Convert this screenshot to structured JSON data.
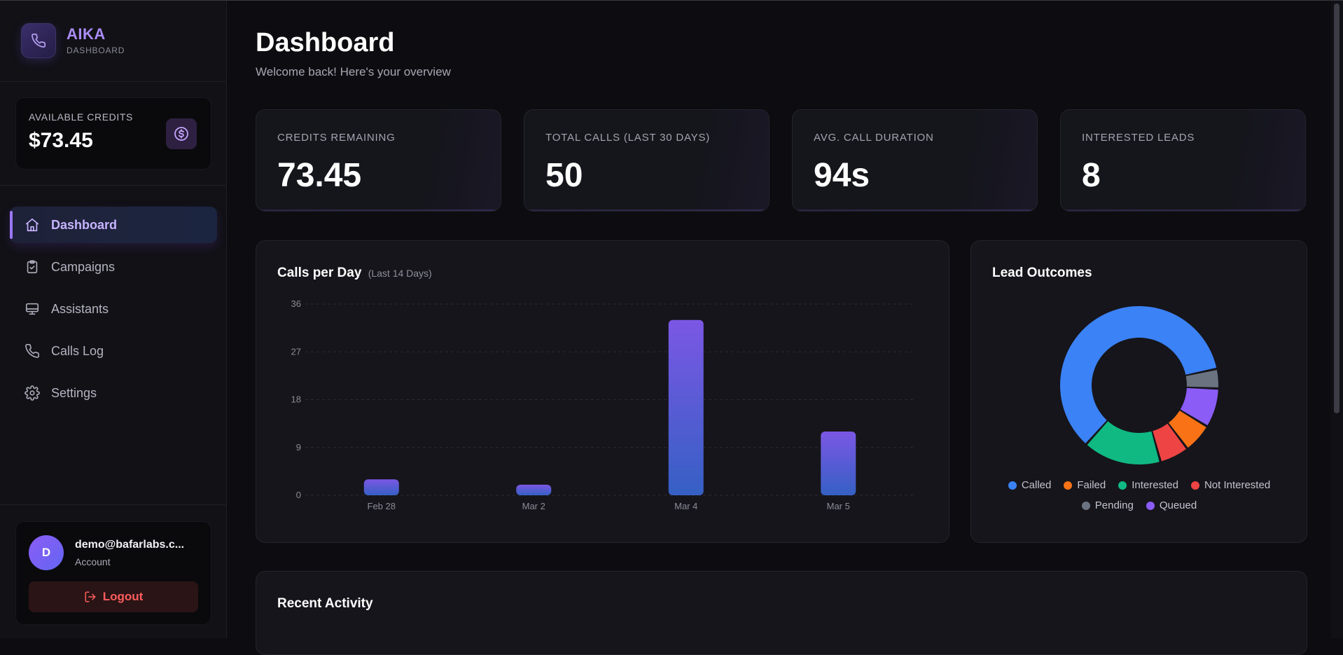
{
  "brand": {
    "name": "AIKA",
    "sub": "DASHBOARD"
  },
  "credits": {
    "label": "AVAILABLE CREDITS",
    "value": "$73.45"
  },
  "nav": {
    "items": [
      {
        "label": "Dashboard",
        "icon": "home-icon",
        "active": true
      },
      {
        "label": "Campaigns",
        "icon": "clipboard-check-icon",
        "active": false
      },
      {
        "label": "Assistants",
        "icon": "monitor-icon",
        "active": false
      },
      {
        "label": "Calls Log",
        "icon": "phone-icon",
        "active": false
      },
      {
        "label": "Settings",
        "icon": "gear-icon",
        "active": false
      }
    ]
  },
  "user": {
    "initial": "D",
    "email": "demo@bafarlabs.c...",
    "role": "Account",
    "logout_label": "Logout"
  },
  "header": {
    "title": "Dashboard",
    "subtitle": "Welcome back! Here's your overview"
  },
  "stats": [
    {
      "label": "CREDITS REMAINING",
      "value": "73.45"
    },
    {
      "label": "TOTAL CALLS (LAST 30 DAYS)",
      "value": "50"
    },
    {
      "label": "AVG. CALL DURATION",
      "value": "94s"
    },
    {
      "label": "INTERESTED LEADS",
      "value": "8"
    }
  ],
  "calls_panel": {
    "title": "Calls per Day",
    "note": "(Last 14 Days)"
  },
  "outcomes_panel": {
    "title": "Lead Outcomes"
  },
  "activity_panel": {
    "title": "Recent Activity"
  },
  "colors": {
    "accent": "#9a78f5",
    "bar_top": "#7b57e4",
    "bar_bottom": "#3560c4",
    "called": "#3b82f6",
    "failed": "#f97316",
    "interested": "#10b981",
    "not_interested": "#ef4444",
    "pending": "#6b7280",
    "queued": "#8b5cf6",
    "logout": "#ff5d5d"
  },
  "chart_data": [
    {
      "type": "bar",
      "title": "Calls per Day",
      "categories": [
        "Feb 28",
        "Mar 2",
        "Mar 4",
        "Mar 5"
      ],
      "values": [
        3,
        2,
        33,
        12
      ],
      "ylim": [
        0,
        36
      ],
      "yticks": [
        0,
        9,
        18,
        27,
        36
      ],
      "grid": true
    },
    {
      "type": "pie",
      "title": "Lead Outcomes",
      "donut": true,
      "categories": [
        "Called",
        "Pending",
        "Queued",
        "Failed",
        "Not Interested",
        "Interested"
      ],
      "values": [
        30,
        2,
        4,
        3,
        3,
        8
      ],
      "legend": [
        "Called",
        "Failed",
        "Interested",
        "Not Interested",
        "Pending",
        "Queued"
      ],
      "legend_position": "bottom"
    }
  ]
}
